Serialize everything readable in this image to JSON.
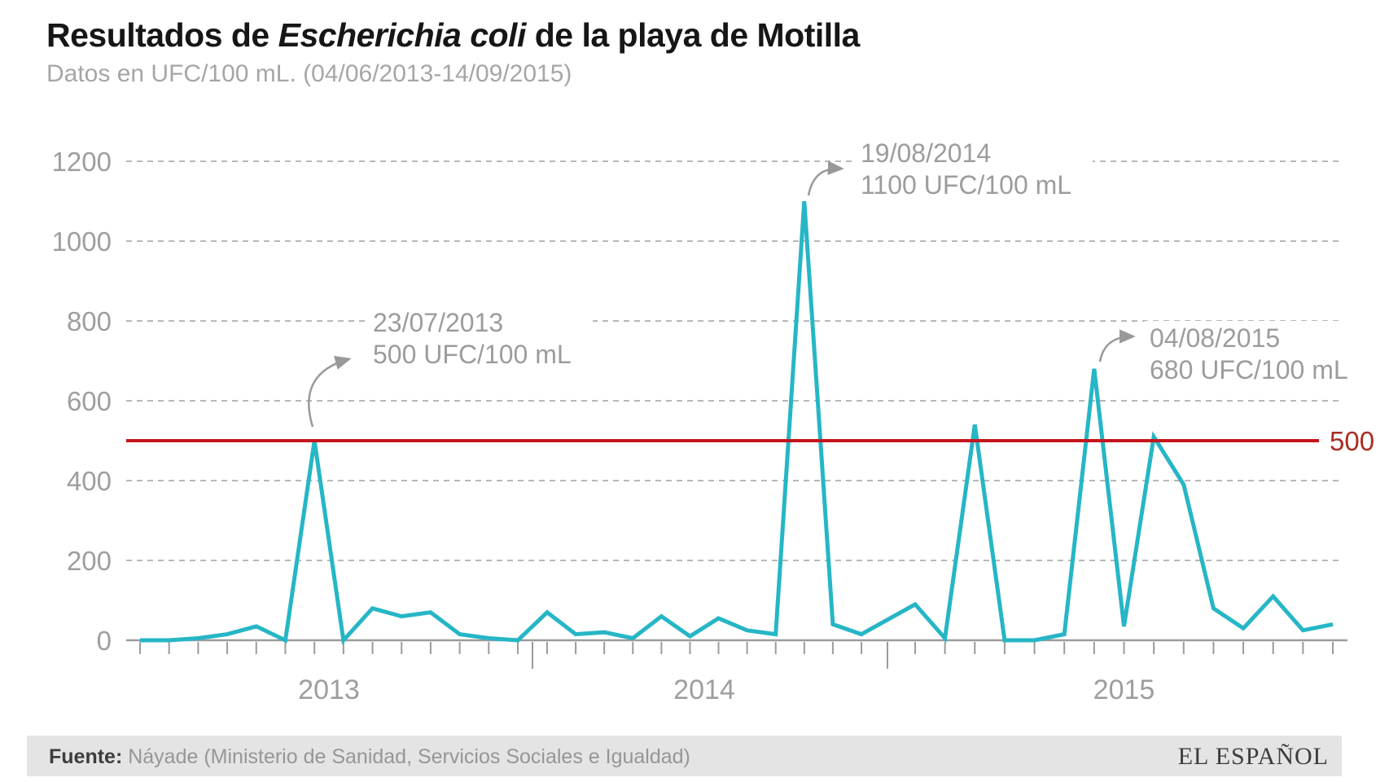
{
  "header": {
    "title_prefix": "Resultados de ",
    "title_italic": "Escherichia coli",
    "title_suffix": " de la playa de Motilla",
    "subtitle": "Datos en UFC/100 mL. (04/06/2013-14/09/2015)"
  },
  "chart_data": {
    "type": "line",
    "title": "Resultados de Escherichia coli de la playa de Motilla",
    "unit": "UFC/100 mL",
    "date_range": "04/06/2013-14/09/2015",
    "ylim": [
      0,
      1200
    ],
    "yticks": [
      0,
      200,
      400,
      600,
      800,
      1000,
      1200
    ],
    "grid": "dashed-horizontal",
    "legend": "none",
    "line_color": "#26b6c6",
    "threshold": {
      "value": 500,
      "label": "500",
      "line_color": "#c4161c",
      "label_color": "#aa2d23"
    },
    "groups": [
      {
        "year": "2013",
        "values": [
          0,
          0,
          5,
          15,
          35,
          0,
          500,
          0,
          80,
          60,
          70,
          15,
          5,
          0
        ]
      },
      {
        "year": "2014",
        "values": [
          70,
          15,
          20,
          5,
          60,
          10,
          55,
          25,
          15,
          1100,
          40,
          15
        ]
      },
      {
        "year": "2015",
        "values": [
          90,
          5,
          540,
          0,
          0,
          15,
          680,
          35,
          510,
          390,
          80,
          30,
          110,
          25,
          40
        ]
      }
    ],
    "annotations": [
      {
        "date": "23/07/2013",
        "value_label": "500 UFC/100 mL",
        "group": 0,
        "index": 6
      },
      {
        "date": "19/08/2014",
        "value_label": "1100 UFC/100 mL",
        "group": 1,
        "index": 9
      },
      {
        "date": "04/08/2015",
        "value_label": "680 UFC/100 mL",
        "group": 2,
        "index": 6
      }
    ]
  },
  "footer": {
    "source_label": "Fuente:",
    "source_text": " Náyade (Ministerio de Sanidad, Servicios Sociales e Igualdad)",
    "brand": "EL ESPAÑOL"
  }
}
